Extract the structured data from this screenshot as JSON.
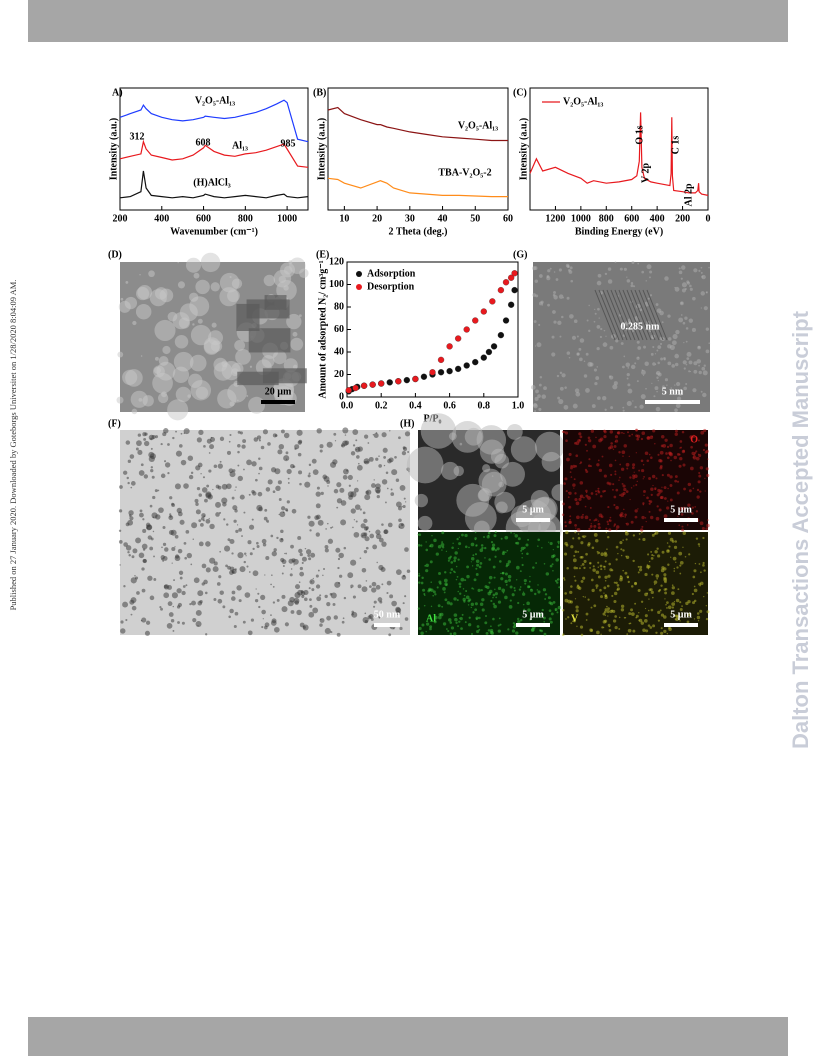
{
  "side_left": "Published on 27 January 2020. Downloaded by Goteborgs Universitet on 1/28/2020 8:04:09 AM.",
  "side_right": "Dalton Transactions Accepted Manuscript",
  "chart_data": [
    {
      "type": "line",
      "label": "A)",
      "xlabel": "Wavenumber (cm⁻¹)",
      "ylabel": "Intensity (a.u.)",
      "x": [
        200,
        250,
        300,
        312,
        325,
        350,
        400,
        450,
        500,
        550,
        600,
        608,
        650,
        700,
        750,
        800,
        850,
        900,
        950,
        985,
        1000,
        1050,
        1100
      ],
      "xlim": [
        200,
        1100
      ],
      "xticks": [
        200,
        400,
        600,
        800,
        1000
      ],
      "ylim": [
        0,
        10
      ],
      "legend": "inline",
      "series": [
        {
          "name": "V₂O₅-Al₁₃",
          "color": "#1f3cff",
          "values": [
            7.6,
            7.9,
            8.2,
            8.6,
            8.3,
            7.9,
            7.6,
            7.4,
            7.3,
            7.4,
            7.6,
            7.7,
            7.6,
            7.5,
            7.6,
            7.8,
            8.0,
            8.3,
            8.7,
            9.0,
            8.8,
            5.8,
            5.6
          ]
        },
        {
          "name": "Al₁₃",
          "color": "#e8191e",
          "values": [
            4.2,
            4.4,
            4.6,
            5.6,
            5.0,
            4.5,
            4.3,
            4.1,
            4.2,
            4.5,
            5.1,
            5.3,
            4.8,
            4.5,
            4.4,
            4.6,
            4.7,
            4.9,
            5.2,
            5.4,
            5.0,
            3.6,
            3.5
          ]
        },
        {
          "name": "(H)AlCl₃",
          "color": "#111111",
          "values": [
            1.0,
            1.1,
            1.5,
            3.2,
            1.8,
            1.2,
            1.1,
            1.0,
            1.1,
            1.0,
            1.2,
            1.3,
            1.1,
            1.0,
            1.1,
            1.2,
            1.1,
            1.0,
            1.2,
            1.3,
            1.1,
            1.0,
            1.1
          ]
        }
      ],
      "annotations": [
        "312",
        "608",
        "985"
      ]
    },
    {
      "type": "line",
      "label": "(B)",
      "xlabel": "2 Theta (deg.)",
      "ylabel": "Intensity (a.u.)",
      "x": [
        5,
        8,
        10,
        15,
        20,
        21,
        23,
        25,
        30,
        35,
        40,
        45,
        50,
        55,
        60
      ],
      "xlim": [
        5,
        60
      ],
      "xticks": [
        10,
        20,
        30,
        40,
        50,
        60
      ],
      "ylim": [
        0,
        10
      ],
      "legend": "inline",
      "series": [
        {
          "name": "V₂O₅-Al₁₃",
          "color": "#8b1414",
          "values": [
            8.2,
            8.4,
            7.9,
            7.4,
            7.0,
            7.0,
            6.8,
            6.7,
            6.4,
            6.2,
            6.0,
            5.9,
            5.8,
            5.7,
            5.7
          ]
        },
        {
          "name": "TBA-V₂O₅-2",
          "color": "#ff8c1a",
          "values": [
            2.6,
            2.5,
            2.2,
            1.8,
            2.3,
            2.4,
            2.2,
            1.8,
            1.4,
            1.3,
            1.2,
            1.2,
            1.15,
            1.1,
            1.1
          ]
        }
      ]
    },
    {
      "type": "line",
      "label": "(C)",
      "xlabel": "Binding Energy (eV)",
      "ylabel": "Intensity (a.u.)",
      "x": [
        1400,
        1350,
        1300,
        1200,
        1100,
        1000,
        950,
        900,
        800,
        700,
        600,
        560,
        540,
        530,
        520,
        500,
        450,
        400,
        300,
        290,
        285,
        280,
        270,
        200,
        150,
        100,
        80,
        74,
        70,
        50,
        0
      ],
      "xlim": [
        1400,
        0
      ],
      "xticks": [
        1200,
        1000,
        800,
        600,
        400,
        200,
        0
      ],
      "ylim": [
        0,
        10
      ],
      "legend": "upper left",
      "series": [
        {
          "name": "V₂O₅-Al₁₃",
          "color": "#e8191e",
          "values": [
            3.0,
            4.2,
            3.2,
            3.5,
            3.0,
            2.6,
            2.2,
            2.4,
            2.2,
            2.3,
            2.5,
            2.8,
            4.0,
            8.0,
            3.5,
            2.6,
            2.3,
            2.2,
            2.0,
            3.0,
            7.6,
            2.8,
            1.6,
            1.5,
            1.4,
            1.4,
            1.6,
            2.2,
            1.5,
            1.3,
            1.2
          ]
        }
      ],
      "annotations": [
        "O 1s",
        "V 2p",
        "C 1s",
        "Al 2p"
      ]
    },
    {
      "type": "scatter",
      "label": "(E)",
      "xlabel": "P/P₀",
      "ylabel": "Amount of adsorpted N₂/ cm³g⁻¹",
      "xlim": [
        0,
        1
      ],
      "xticks": [
        {
          "value": 0,
          "label": "0.0"
        },
        0.2,
        0.4,
        0.6,
        0.8,
        {
          "value": 1,
          "label": "1.0"
        }
      ],
      "ylim": [
        0,
        120
      ],
      "yticks": [
        0,
        20,
        40,
        60,
        80,
        100,
        120
      ],
      "legend": "upper left",
      "series": [
        {
          "name": "Adsorption",
          "color": "#111111",
          "x": [
            0.01,
            0.03,
            0.06,
            0.1,
            0.15,
            0.2,
            0.25,
            0.3,
            0.35,
            0.4,
            0.45,
            0.5,
            0.55,
            0.6,
            0.65,
            0.7,
            0.75,
            0.8,
            0.83,
            0.86,
            0.9,
            0.93,
            0.96,
            0.98
          ],
          "values": [
            5,
            7,
            9,
            10,
            11,
            12,
            13,
            14,
            15,
            16,
            18,
            20,
            22,
            23,
            25,
            28,
            31,
            35,
            40,
            45,
            55,
            68,
            82,
            95
          ]
        },
        {
          "name": "Desorption",
          "color": "#e8191e",
          "x": [
            0.01,
            0.05,
            0.1,
            0.15,
            0.2,
            0.3,
            0.4,
            0.5,
            0.55,
            0.6,
            0.65,
            0.7,
            0.75,
            0.8,
            0.85,
            0.9,
            0.93,
            0.96,
            0.98
          ],
          "values": [
            6,
            8,
            10,
            11,
            12,
            14,
            16,
            22,
            33,
            45,
            52,
            60,
            68,
            76,
            85,
            95,
            102,
            106,
            110
          ]
        }
      ]
    }
  ],
  "images": [
    {
      "label": "(D)",
      "texts": [
        "20 µm"
      ]
    },
    {
      "label": "(G)",
      "texts": [
        "0.285 nm",
        "5 nm"
      ]
    },
    {
      "label": "(F)",
      "texts": [
        "50 nm"
      ]
    },
    {
      "label": "(H)",
      "tiles": [
        {
          "texts": [
            "5 µm"
          ]
        },
        {
          "texts": [
            "O",
            "5 µm"
          ]
        },
        {
          "texts": [
            "Al",
            "5 µm"
          ]
        },
        {
          "texts": [
            "V",
            "5 µm"
          ]
        }
      ]
    }
  ]
}
